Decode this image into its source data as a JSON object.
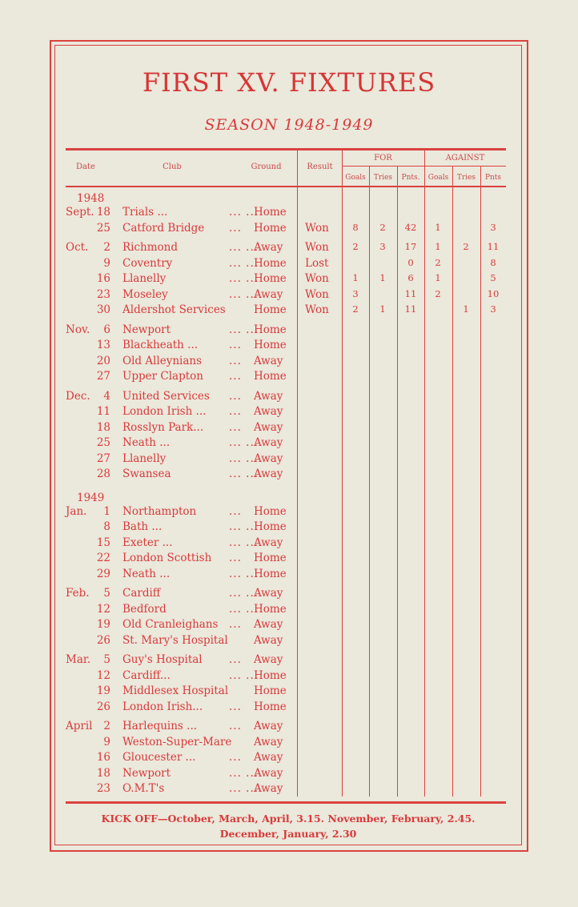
{
  "title": "FIRST XV. FIXTURES",
  "season": "SEASON 1948-1949",
  "headers": {
    "date": "Date",
    "club": "Club",
    "ground": "Ground",
    "result": "Result",
    "for": "FOR",
    "against": "AGAINST",
    "goals": "Goals",
    "tries": "Tries",
    "pnts_for": "Pnts.",
    "pnts_against": "Pnts"
  },
  "colors": {
    "ink": "#d83a3a",
    "paper": "#ebe8dc"
  },
  "groups": [
    {
      "year": "1948",
      "rows": [
        {
          "month": "Sept.",
          "day": "18",
          "club": "Trials ...",
          "dots": "... ...",
          "ground": "Home"
        },
        {
          "month": "",
          "day": "25",
          "club": "Catford Bridge",
          "dots": "...",
          "ground": "Home",
          "result": "Won",
          "fg": "8",
          "ft": "2",
          "fp": "42",
          "ag": "1",
          "at": "",
          "ap": "3"
        }
      ]
    },
    {
      "rows": [
        {
          "month": "Oct.",
          "day": "2",
          "club": "Richmond",
          "dots": "... ...",
          "ground": "Away",
          "result": "Won",
          "fg": "2",
          "ft": "3",
          "fp": "17",
          "ag": "1",
          "at": "2",
          "ap": "11"
        },
        {
          "month": "",
          "day": "9",
          "club": "Coventry",
          "dots": "... ...",
          "ground": "Home",
          "result": "Lost",
          "fg": "",
          "ft": "",
          "fp": "0",
          "ag": "2",
          "at": "",
          "ap": "8"
        },
        {
          "month": "",
          "day": "16",
          "club": "Llanelly",
          "dots": "... ...",
          "ground": "Home",
          "result": "Won",
          "fg": "1",
          "ft": "1",
          "fp": "6",
          "ag": "1",
          "at": "",
          "ap": "5"
        },
        {
          "month": "",
          "day": "23",
          "club": "Moseley",
          "dots": "... ...",
          "ground": "Away",
          "result": "Won",
          "fg": "3",
          "ft": "",
          "fp": "11",
          "ag": "2",
          "at": "",
          "ap": "10"
        },
        {
          "month": "",
          "day": "30",
          "club": "Aldershot Services",
          "dots": "",
          "ground": "Home",
          "result": "Won",
          "fg": "2",
          "ft": "1",
          "fp": "11",
          "ag": "",
          "at": "1",
          "ap": "3"
        }
      ]
    },
    {
      "rows": [
        {
          "month": "Nov.",
          "day": "6",
          "club": "Newport",
          "dots": "... ...",
          "ground": "Home"
        },
        {
          "month": "",
          "day": "13",
          "club": "Blackheath ...",
          "dots": "...",
          "ground": "Home"
        },
        {
          "month": "",
          "day": "20",
          "club": "Old Alleynians",
          "dots": "...",
          "ground": "Away"
        },
        {
          "month": "",
          "day": "27",
          "club": "Upper Clapton",
          "dots": "...",
          "ground": "Home"
        }
      ]
    },
    {
      "rows": [
        {
          "month": "Dec.",
          "day": "4",
          "club": "United Services",
          "dots": "...",
          "ground": "Away"
        },
        {
          "month": "",
          "day": "11",
          "club": "London Irish ...",
          "dots": "...",
          "ground": "Away"
        },
        {
          "month": "",
          "day": "18",
          "club": "Rosslyn Park...",
          "dots": "...",
          "ground": "Away"
        },
        {
          "month": "",
          "day": "25",
          "club": "Neath ...",
          "dots": "... ...",
          "ground": "Away"
        },
        {
          "month": "",
          "day": "27",
          "club": "Llanelly",
          "dots": "... ...",
          "ground": "Away"
        },
        {
          "month": "",
          "day": "28",
          "club": "Swansea",
          "dots": "... ...",
          "ground": "Away"
        }
      ]
    },
    {
      "year": "1949",
      "rows": [
        {
          "month": "Jan.",
          "day": "1",
          "club": "Northampton",
          "dots": "...",
          "ground": "Home"
        },
        {
          "month": "",
          "day": "8",
          "club": "Bath ...",
          "dots": "... ...",
          "ground": "Home"
        },
        {
          "month": "",
          "day": "15",
          "club": "Exeter ...",
          "dots": "... ...",
          "ground": "Away"
        },
        {
          "month": "",
          "day": "22",
          "club": "London Scottish",
          "dots": "...",
          "ground": "Home"
        },
        {
          "month": "",
          "day": "29",
          "club": "Neath ...",
          "dots": "... ...",
          "ground": "Home"
        }
      ]
    },
    {
      "rows": [
        {
          "month": "Feb.",
          "day": "5",
          "club": "Cardiff",
          "dots": "... ...",
          "ground": "Away"
        },
        {
          "month": "",
          "day": "12",
          "club": "Bedford",
          "dots": "... ...",
          "ground": "Home"
        },
        {
          "month": "",
          "day": "19",
          "club": "Old Cranleighans",
          "dots": "...",
          "ground": "Away"
        },
        {
          "month": "",
          "day": "26",
          "club": "St. Mary's Hospital",
          "dots": "",
          "ground": "Away"
        }
      ]
    },
    {
      "rows": [
        {
          "month": "Mar.",
          "day": "5",
          "club": "Guy's Hospital",
          "dots": "...",
          "ground": "Away"
        },
        {
          "month": "",
          "day": "12",
          "club": "Cardiff...",
          "dots": "... ...",
          "ground": "Home"
        },
        {
          "month": "",
          "day": "19",
          "club": "Middlesex Hospital",
          "dots": "",
          "ground": "Home"
        },
        {
          "month": "",
          "day": "26",
          "club": "London Irish...",
          "dots": "...",
          "ground": "Home"
        }
      ]
    },
    {
      "rows": [
        {
          "month": "April",
          "day": "2",
          "club": "Harlequins ...",
          "dots": "...",
          "ground": "Away"
        },
        {
          "month": "",
          "day": "9",
          "club": "Weston-Super-Mare",
          "dots": "",
          "ground": "Away"
        },
        {
          "month": "",
          "day": "16",
          "club": "Gloucester ...",
          "dots": "...",
          "ground": "Away"
        },
        {
          "month": "",
          "day": "18",
          "club": "Newport",
          "dots": "... ...",
          "ground": "Away"
        },
        {
          "month": "",
          "day": "23",
          "club": "O.M.T's",
          "dots": "... ...",
          "ground": "Away"
        }
      ]
    }
  ],
  "footer": {
    "line1": "KICK OFF—October, March, April, 3.15.  November, February, 2.45.",
    "line2": "December, January, 2.30"
  }
}
